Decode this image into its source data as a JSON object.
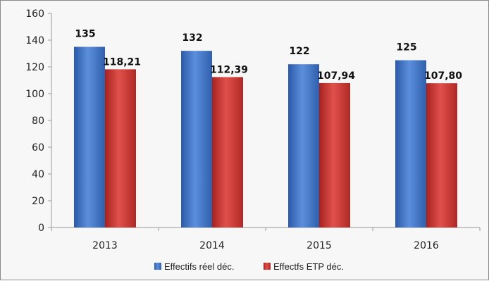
{
  "chart_data": {
    "type": "bar",
    "categories": [
      "2013",
      "2014",
      "2015",
      "2016"
    ],
    "series": [
      {
        "name": "Effectifs réel déc.",
        "values": [
          135,
          132,
          122,
          125
        ],
        "labels": [
          "135",
          "132",
          "122",
          "125"
        ],
        "color": "#3f72c2"
      },
      {
        "name": "Effectfs ETP déc.",
        "values": [
          118.21,
          112.39,
          107.94,
          107.8
        ],
        "labels": [
          "118,21",
          "112,39",
          "107,94",
          "107,80"
        ],
        "color": "#c9302c"
      }
    ],
    "y_ticks": [
      "0",
      "20",
      "40",
      "60",
      "80",
      "100",
      "120",
      "140",
      "160"
    ],
    "ylim": [
      0,
      160
    ],
    "grid": false,
    "legend_position": "bottom"
  }
}
